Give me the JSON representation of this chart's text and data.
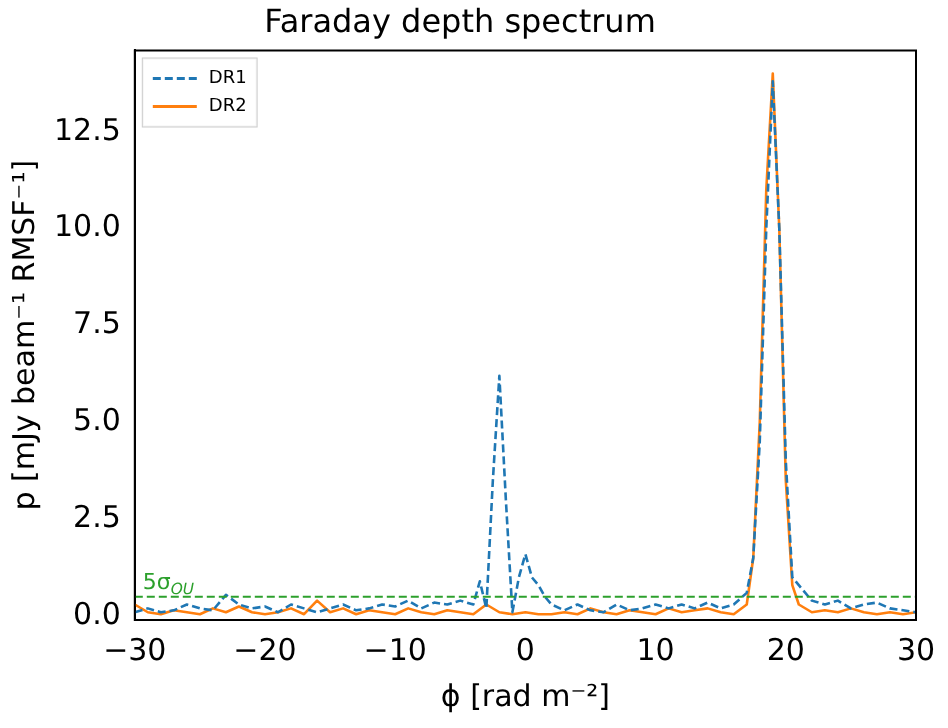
{
  "chart_data": {
    "type": "line",
    "title": "Faraday depth spectrum",
    "xlabel": "ϕ [rad m⁻²]",
    "ylabel": "p [mJy beam⁻¹ RMSF⁻¹]",
    "xlim": [
      -30,
      30
    ],
    "ylim": [
      -0.1,
      14.6
    ],
    "xticks": [
      {
        "value": -30,
        "label": "−30"
      },
      {
        "value": -20,
        "label": "−20"
      },
      {
        "value": -10,
        "label": "−10"
      },
      0,
      10,
      20,
      30
    ],
    "yticks": [
      {
        "value": 0,
        "label": "0.0"
      },
      2.5,
      {
        "value": 5,
        "label": "5.0"
      },
      7.5,
      {
        "value": 10,
        "label": "10.0"
      },
      12.5
    ],
    "grid": false,
    "legend": "top left",
    "marker": "none",
    "series": [
      {
        "name": "DR1",
        "color": "#1f77b4",
        "line_style": "dashed",
        "x": [
          -30,
          -29,
          -28,
          -27,
          -26,
          -25,
          -24,
          -23,
          -22,
          -21,
          -20,
          -19,
          -18,
          -17,
          -16,
          -15,
          -14,
          -13,
          -12,
          -11,
          -10,
          -9,
          -8,
          -7,
          -6,
          -5,
          -4,
          -3.5,
          -3,
          -2.5,
          -2,
          -1.5,
          -1,
          -0.5,
          0,
          0.5,
          1,
          1.5,
          2,
          3,
          4,
          5,
          6,
          7,
          8,
          9,
          10,
          11,
          12,
          13,
          14,
          15,
          16,
          17,
          17.5,
          18,
          18.5,
          19,
          19.5,
          20,
          20.5,
          21,
          22,
          23,
          24,
          25,
          26,
          27,
          28,
          29,
          30
        ],
        "values": [
          0.1,
          0.2,
          0.1,
          0.15,
          0.3,
          0.2,
          0.15,
          0.55,
          0.3,
          0.2,
          0.25,
          0.1,
          0.3,
          0.2,
          0.1,
          0.2,
          0.3,
          0.15,
          0.2,
          0.3,
          0.25,
          0.4,
          0.2,
          0.35,
          0.3,
          0.4,
          0.3,
          0.9,
          0.2,
          3.5,
          6.2,
          3.0,
          0.1,
          1.0,
          1.6,
          1.0,
          0.8,
          0.5,
          0.3,
          0.15,
          0.3,
          0.15,
          0.1,
          0.3,
          0.15,
          0.2,
          0.3,
          0.2,
          0.3,
          0.2,
          0.35,
          0.2,
          0.3,
          0.6,
          1.5,
          4.5,
          10,
          13.8,
          10,
          4,
          1.0,
          0.8,
          0.4,
          0.3,
          0.4,
          0.2,
          0.3,
          0.35,
          0.2,
          0.15,
          0.1
        ]
      },
      {
        "name": "DR2",
        "color": "#ff7f0e",
        "line_style": "solid",
        "x": [
          -30,
          -29,
          -28,
          -27,
          -26,
          -25,
          -24,
          -23,
          -22,
          -21,
          -20,
          -19,
          -18,
          -17,
          -16,
          -15,
          -14,
          -13,
          -12,
          -11,
          -10,
          -9,
          -8,
          -7,
          -6,
          -5,
          -4,
          -3,
          -2,
          -1,
          0,
          1,
          2,
          3,
          4,
          5,
          6,
          7,
          8,
          9,
          10,
          11,
          12,
          13,
          14,
          15,
          16,
          17,
          17.5,
          18,
          18.5,
          19,
          19.5,
          20,
          20.5,
          21,
          22,
          23,
          24,
          25,
          26,
          27,
          28,
          29,
          30
        ],
        "values": [
          0.3,
          0.1,
          0.05,
          0.15,
          0.1,
          0.05,
          0.2,
          0.1,
          0.25,
          0.1,
          0.05,
          0.1,
          0.2,
          0.05,
          0.4,
          0.1,
          0.2,
          0.05,
          0.15,
          0.1,
          0.05,
          0.2,
          0.1,
          0.05,
          0.15,
          0.1,
          0.05,
          0.3,
          0.1,
          0.05,
          0.1,
          0.05,
          0.05,
          0.1,
          0.05,
          0.2,
          0.1,
          0.05,
          0.15,
          0.1,
          0.05,
          0.2,
          0.1,
          0.15,
          0.2,
          0.1,
          0.05,
          0.3,
          1.5,
          5,
          11,
          14,
          10,
          3.5,
          0.8,
          0.3,
          0.1,
          0.15,
          0.1,
          0.2,
          0.1,
          0.05,
          0.1,
          0.05,
          0.1
        ]
      }
    ],
    "ref_lines": [
      {
        "axis": "y",
        "value": 0.5,
        "label": "5σ$_{OU}$",
        "color": "#2ca02c",
        "line_style": "dashed"
      }
    ]
  }
}
